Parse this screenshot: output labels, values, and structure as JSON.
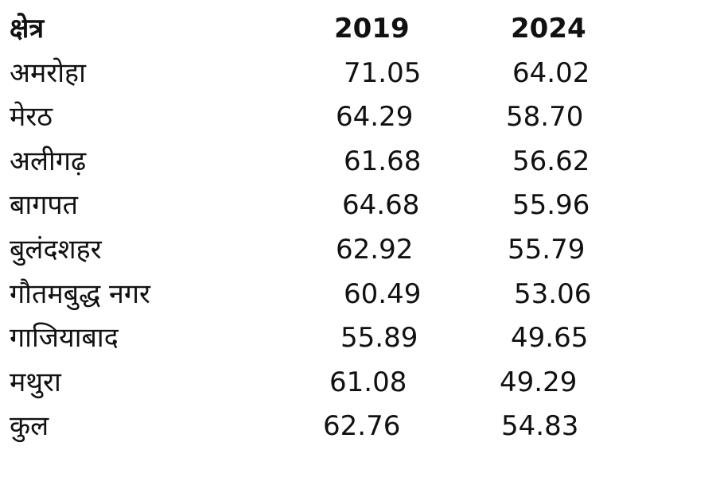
{
  "table": {
    "headers": [
      "क्षेत्र",
      "2019",
      "2024"
    ],
    "rows": [
      {
        "region": "अमरोहा",
        "y2019": "71.05",
        "y2024": "64.02"
      },
      {
        "region": "मेरठ",
        "y2019": "64.29",
        "y2024": "58.70"
      },
      {
        "region": "अलीगढ़",
        "y2019": "61.68",
        "y2024": "56.62"
      },
      {
        "region": "बागपत",
        "y2019": "64.68",
        "y2024": "55.96"
      },
      {
        "region": "बुलंदशहर",
        "y2019": "62.92",
        "y2024": "55.79"
      },
      {
        "region": "गौतमबुद्ध नगर",
        "y2019": "60.49",
        "y2024": "53.06"
      },
      {
        "region": "गाजियाबाद",
        "y2019": "55.89",
        "y2024": "49.65"
      },
      {
        "region": "मथुरा",
        "y2019": "61.08",
        "y2024": "49.29"
      },
      {
        "region": "कुल",
        "y2019": "62.76",
        "y2024": "54.83"
      }
    ]
  }
}
